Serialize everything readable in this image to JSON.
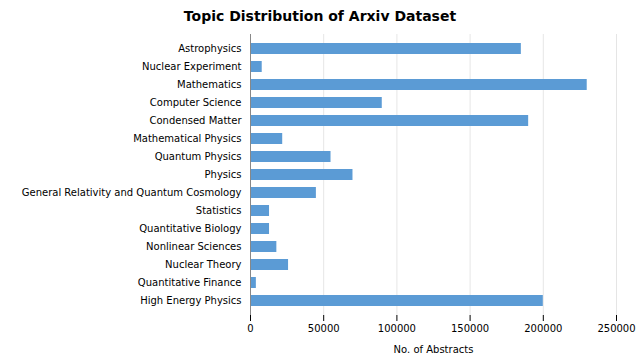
{
  "chart_data": {
    "type": "bar",
    "orientation": "horizontal",
    "title": "Topic Distribution of Arxiv Dataset",
    "xlabel": "No. of Abstracts",
    "categories": [
      "Astrophysics",
      "Nuclear Experiment",
      "Mathematics",
      "Computer Science",
      "Condensed Matter",
      "Mathematical Physics",
      "Quantum Physics",
      "Physics",
      "General Relativity and Quantum Cosmology",
      "Statistics",
      "Quantitative Biology",
      "Nonlinear Sciences",
      "Nuclear Theory",
      "Quantitative Finance",
      "High Energy Physics"
    ],
    "values": [
      185000,
      8000,
      230000,
      90000,
      190000,
      22000,
      55000,
      70000,
      45000,
      13000,
      13000,
      18000,
      26000,
      4000,
      200000
    ],
    "color": "#5b9bd5",
    "xlim": [
      0,
      250000
    ],
    "xticks": [
      0,
      50000,
      100000,
      150000,
      200000,
      250000
    ],
    "grid": true
  }
}
